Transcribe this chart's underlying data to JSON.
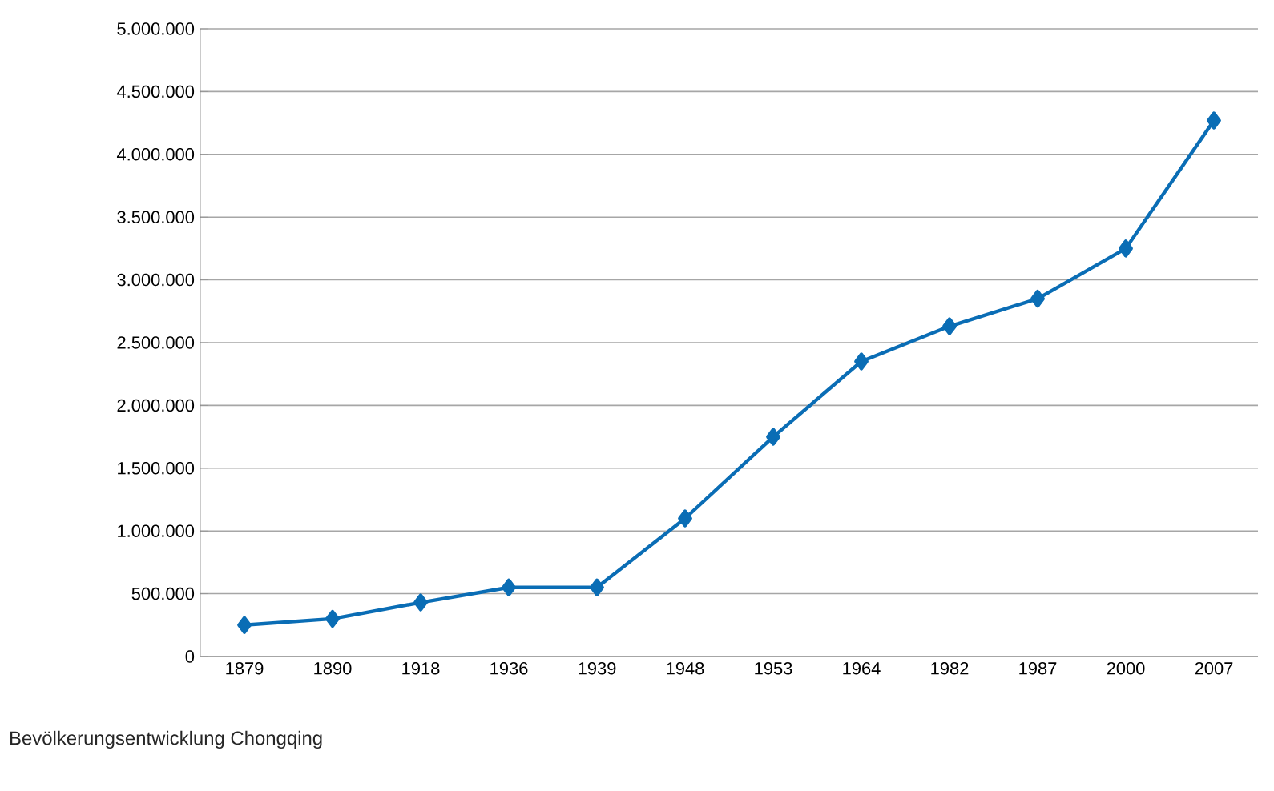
{
  "chart_data": {
    "type": "line",
    "categories": [
      "1879",
      "1890",
      "1918",
      "1936",
      "1939",
      "1948",
      "1953",
      "1964",
      "1982",
      "1987",
      "2000",
      "2007"
    ],
    "series": [
      {
        "color": "#0a6db5",
        "values": [
          250000,
          300000,
          430000,
          550000,
          550000,
          1100000,
          1750000,
          2350000,
          2630000,
          2850000,
          3250000,
          4270000
        ]
      }
    ],
    "ylim": [
      0,
      5000000
    ],
    "yticks": [
      {
        "value": 0,
        "label": "0"
      },
      {
        "value": 500000,
        "label": "500.000"
      },
      {
        "value": 1000000,
        "label": "1.000.000"
      },
      {
        "value": 1500000,
        "label": "1.500.000"
      },
      {
        "value": 2000000,
        "label": "2.000.000"
      },
      {
        "value": 2500000,
        "label": "2.500.000"
      },
      {
        "value": 3000000,
        "label": "3.000.000"
      },
      {
        "value": 3500000,
        "label": "3.500.000"
      },
      {
        "value": 4000000,
        "label": "4.000.000"
      },
      {
        "value": 4500000,
        "label": "4.500.000"
      },
      {
        "value": 5000000,
        "label": "5.000.000"
      }
    ],
    "grid": "y",
    "marker": "diamond",
    "line_style": "solid",
    "annotations": [
      "Bevölkerungsentwicklung Chongqing"
    ]
  }
}
